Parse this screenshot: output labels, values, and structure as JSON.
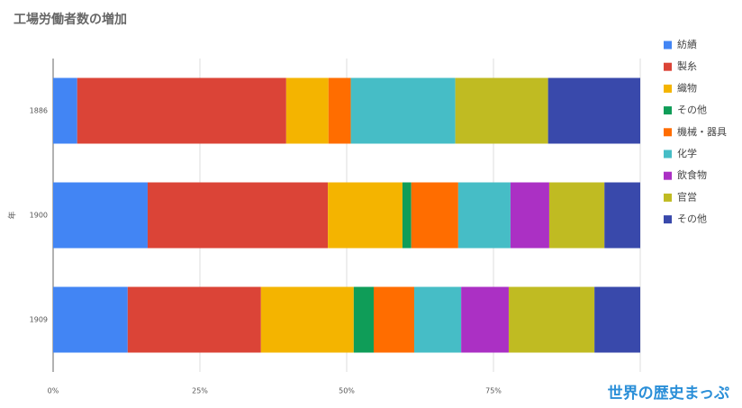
{
  "chart_data": {
    "type": "stacked-bar-horizontal",
    "title": "工場労働者数の増加",
    "y_label": "年",
    "categories": [
      "1886",
      "1900",
      "1909"
    ],
    "series": [
      {
        "name": "紡績",
        "color": "#4285f4",
        "values": [
          4.1,
          16.1,
          12.7
        ]
      },
      {
        "name": "製糸",
        "color": "#db4437",
        "values": [
          35.6,
          30.7,
          22.7
        ]
      },
      {
        "name": "織物",
        "color": "#f4b400",
        "values": [
          7.2,
          12.7,
          15.8
        ]
      },
      {
        "name": "その他",
        "color": "#0f9d58",
        "values": [
          0,
          1.5,
          3.4
        ]
      },
      {
        "name": "機械・器具",
        "color": "#ff6d00",
        "values": [
          3.8,
          8.0,
          6.9
        ]
      },
      {
        "name": "化学",
        "color": "#46bdc6",
        "values": [
          17.8,
          8.9,
          8.0
        ]
      },
      {
        "name": "飲食物",
        "color": "#ab30c4",
        "values": [
          0,
          6.6,
          8.1
        ]
      },
      {
        "name": "官営",
        "color": "#c0bb22",
        "values": [
          15.8,
          9.4,
          14.6
        ]
      },
      {
        "name": "その他",
        "color": "#3949ab",
        "values": [
          15.7,
          6.1,
          7.8
        ]
      }
    ],
    "xlim": [
      0,
      100
    ],
    "xticks": [
      {
        "value": 0,
        "label": "0%"
      },
      {
        "value": 25,
        "label": "25%"
      },
      {
        "value": 50,
        "label": "50%"
      },
      {
        "value": 75,
        "label": "75%"
      },
      {
        "value": 100,
        "label": ""
      }
    ],
    "grid": true,
    "legend": "right",
    "watermark": "世界の歴史まっぷ"
  }
}
